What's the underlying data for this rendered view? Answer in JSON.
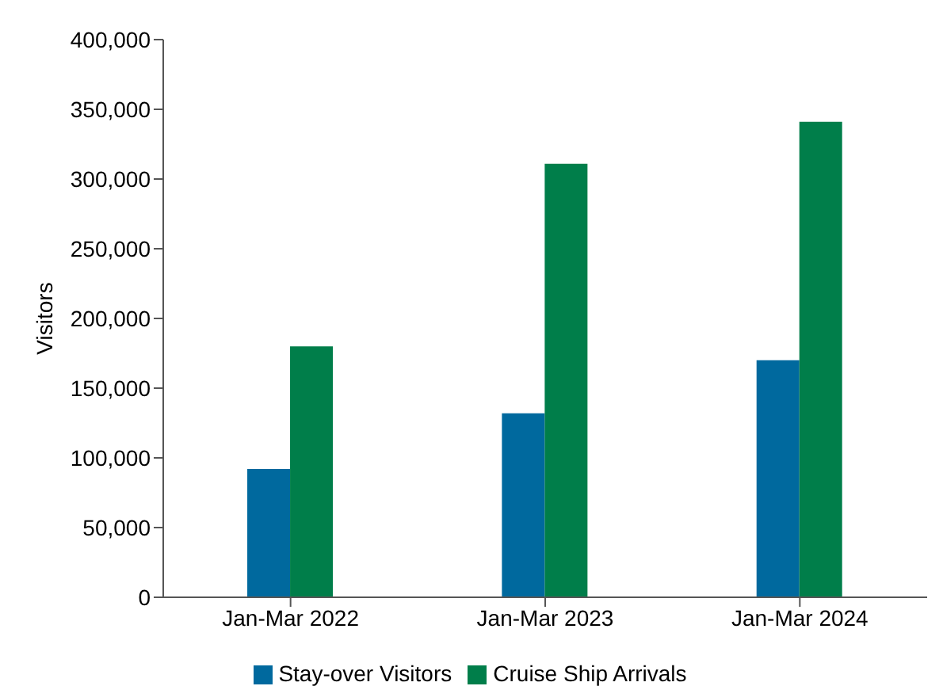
{
  "chart_data": {
    "type": "bar",
    "ylabel": "Visitors",
    "categories": [
      "Jan-Mar 2022",
      "Jan-Mar 2023",
      "Jan-Mar 2024"
    ],
    "series": [
      {
        "name": "Stay-over Visitors",
        "color": "#00699e",
        "values": [
          92000,
          132000,
          170000
        ]
      },
      {
        "name": "Cruise Ship Arrivals",
        "color": "#007e4a",
        "values": [
          180000,
          311000,
          341000
        ]
      }
    ],
    "ylim": [
      0,
      400000
    ],
    "yticks": [
      0,
      {
        "value": 50000,
        "label": "50,000"
      },
      {
        "value": 100000,
        "label": "100,000"
      },
      {
        "value": 150000,
        "label": "150,000"
      },
      {
        "value": 200000,
        "label": "200,000"
      },
      {
        "value": 250000,
        "label": "250,000"
      },
      {
        "value": 300000,
        "label": "300,000"
      },
      {
        "value": 350000,
        "label": "350,000"
      },
      {
        "value": 400000,
        "label": "400,000"
      }
    ],
    "grid": false,
    "legend": "bottom"
  }
}
